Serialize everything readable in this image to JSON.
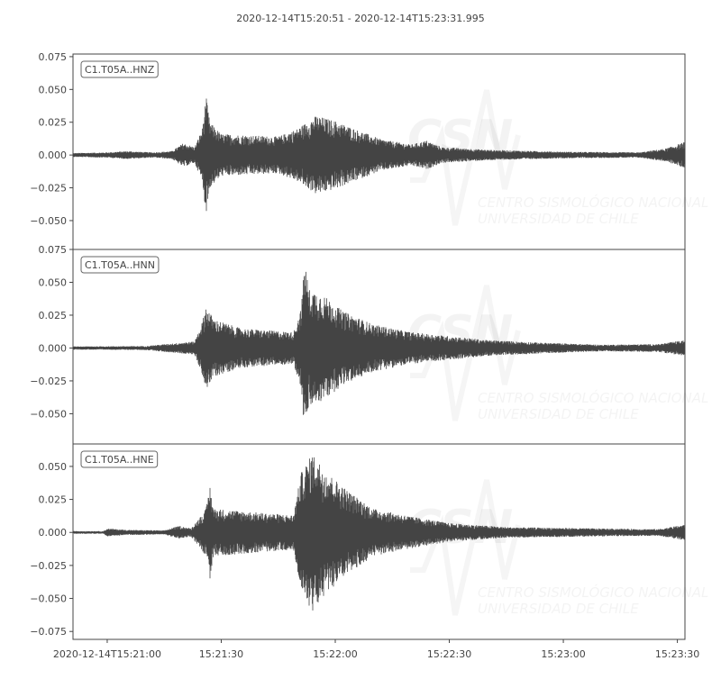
{
  "chart_data": [
    {
      "type": "line",
      "title": "2020-12-14T15:20:51  -  2020-12-14T15:23:31.995",
      "trace_label": "C1.T05A..HNZ",
      "xlim": [
        "15:20:51",
        "15:23:31.995"
      ],
      "ylim": [
        -0.072,
        0.077
      ],
      "yticks": [
        "0.075",
        "0.050",
        "0.025",
        "0.000",
        "−0.025",
        "−0.050"
      ],
      "ytick_values": [
        0.075,
        0.05,
        0.025,
        0,
        -0.025,
        -0.05
      ],
      "envelope": [
        [
          "15:20:51",
          0.0015
        ],
        [
          "15:21:00",
          0.002
        ],
        [
          "15:21:05",
          0.003
        ],
        [
          "15:21:12",
          0.002
        ],
        [
          "15:21:17",
          0.003
        ],
        [
          "15:21:20",
          0.009
        ],
        [
          "15:21:23",
          0.006
        ],
        [
          "15:21:25",
          0.02
        ],
        [
          "15:21:26",
          0.045
        ],
        [
          "15:21:27",
          0.025
        ],
        [
          "15:21:30",
          0.016
        ],
        [
          "15:21:45",
          0.014
        ],
        [
          "15:21:50",
          0.02
        ],
        [
          "15:21:55",
          0.03
        ],
        [
          "15:22:00",
          0.026
        ],
        [
          "15:22:05",
          0.02
        ],
        [
          "15:22:12",
          0.012
        ],
        [
          "15:22:20",
          0.008
        ],
        [
          "15:22:24",
          0.011
        ],
        [
          "15:22:28",
          0.006
        ],
        [
          "15:22:40",
          0.004
        ],
        [
          "15:23:00",
          0.0025
        ],
        [
          "15:23:20",
          0.002
        ],
        [
          "15:23:27",
          0.005
        ],
        [
          "15:23:31.995",
          0.01
        ]
      ]
    },
    {
      "type": "line",
      "trace_label": "C1.T05A..HNN",
      "xlim": [
        "15:20:51",
        "15:23:31.995"
      ],
      "ylim": [
        -0.073,
        0.075
      ],
      "yticks": [
        "0.075",
        "0.050",
        "0.025",
        "0.000",
        "−0.025",
        "−0.050"
      ],
      "ytick_values": [
        0.075,
        0.05,
        0.025,
        0,
        -0.025,
        -0.05
      ],
      "envelope": [
        [
          "15:20:51",
          0.0012
        ],
        [
          "15:21:10",
          0.0015
        ],
        [
          "15:21:19",
          0.004
        ],
        [
          "15:21:23",
          0.005
        ],
        [
          "15:21:25",
          0.02
        ],
        [
          "15:21:26",
          0.032
        ],
        [
          "15:21:28",
          0.022
        ],
        [
          "15:21:35",
          0.015
        ],
        [
          "15:21:49",
          0.012
        ],
        [
          "15:21:51",
          0.03
        ],
        [
          "15:21:52",
          0.068
        ],
        [
          "15:21:53",
          0.045
        ],
        [
          "15:21:57",
          0.04
        ],
        [
          "15:22:02",
          0.028
        ],
        [
          "15:22:10",
          0.018
        ],
        [
          "15:22:20",
          0.012
        ],
        [
          "15:22:30",
          0.009
        ],
        [
          "15:22:40",
          0.006
        ],
        [
          "15:22:55",
          0.004
        ],
        [
          "15:23:10",
          0.0025
        ],
        [
          "15:23:25",
          0.003
        ],
        [
          "15:23:31.995",
          0.006
        ]
      ]
    },
    {
      "type": "line",
      "trace_label": "C1.T05A..HNE",
      "xlim": [
        "15:20:51",
        "15:23:31.995"
      ],
      "ylim": [
        -0.081,
        0.067
      ],
      "yticks": [
        "0.050",
        "0.025",
        "0.000",
        "−0.025",
        "−0.050",
        "−0.075"
      ],
      "ytick_values": [
        0.05,
        0.025,
        0,
        -0.025,
        -0.05,
        -0.075
      ],
      "envelope": [
        [
          "15:20:51",
          0.001
        ],
        [
          "15:20:59",
          0.001
        ],
        [
          "15:21:00",
          0.003
        ],
        [
          "15:21:05",
          0.002
        ],
        [
          "15:21:15",
          0.0015
        ],
        [
          "15:21:19",
          0.005
        ],
        [
          "15:21:22",
          0.003
        ],
        [
          "15:21:24",
          0.01
        ],
        [
          "15:21:26",
          0.018
        ],
        [
          "15:21:27",
          0.036
        ],
        [
          "15:21:28",
          0.018
        ],
        [
          "15:21:40",
          0.015
        ],
        [
          "15:21:49",
          0.013
        ],
        [
          "15:21:51",
          0.045
        ],
        [
          "15:21:54",
          0.06
        ],
        [
          "15:21:58",
          0.045
        ],
        [
          "15:22:04",
          0.03
        ],
        [
          "15:22:10",
          0.018
        ],
        [
          "15:22:20",
          0.012
        ],
        [
          "15:22:30",
          0.007
        ],
        [
          "15:22:45",
          0.004
        ],
        [
          "15:23:10",
          0.003
        ],
        [
          "15:23:25",
          0.0025
        ],
        [
          "15:23:31.995",
          0.006
        ]
      ]
    }
  ],
  "xaxis": {
    "ticks": [
      {
        "time": "15:21:00",
        "label": "2020-12-14T15:21:00"
      },
      {
        "time": "15:21:30",
        "label": "15:21:30"
      },
      {
        "time": "15:22:00",
        "label": "15:22:00"
      },
      {
        "time": "15:22:30",
        "label": "15:22:30"
      },
      {
        "time": "15:23:00",
        "label": "15:23:00"
      },
      {
        "time": "15:23:30",
        "label": "15:23:30"
      }
    ]
  },
  "watermark": {
    "logo": "CSN",
    "line1": "CENTRO SISMOLÓGICO NACIONAL",
    "line2": "UNIVERSIDAD DE CHILE"
  },
  "colors": {
    "trace": "#444444",
    "axes": "#444444",
    "background": "#ffffff"
  }
}
